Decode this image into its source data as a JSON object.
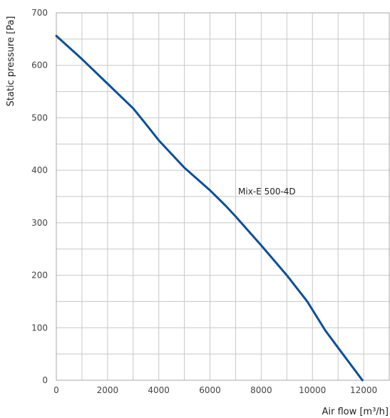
{
  "chart_data": {
    "type": "line",
    "title": "",
    "xlabel": "Air flow [m³/h]",
    "ylabel": "Static pressure [Pa]",
    "xlim": [
      0,
      13000
    ],
    "ylim": [
      0,
      700
    ],
    "xticks": [
      0,
      2000,
      4000,
      6000,
      8000,
      10000,
      12000
    ],
    "yticks": [
      0,
      100,
      200,
      300,
      400,
      500,
      600,
      700
    ],
    "grid": true,
    "series": [
      {
        "name": "Mix-E 500-4D",
        "color": "#0a4f9a",
        "x": [
          0,
          1000,
          2000,
          3000,
          3500,
          4000,
          5000,
          6000,
          6600,
          7000,
          8000,
          9000,
          9800,
          10500,
          11000,
          11950
        ],
        "y": [
          656,
          612,
          565,
          518,
          488,
          457,
          405,
          362,
          333,
          312,
          257,
          200,
          150,
          95,
          62,
          0
        ]
      }
    ]
  }
}
